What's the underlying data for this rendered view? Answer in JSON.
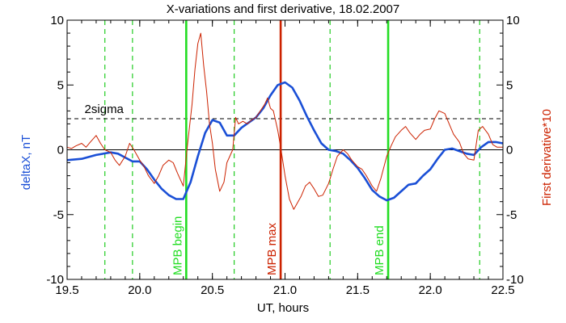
{
  "chart_data": {
    "type": "line",
    "title": "X-variations and first derivative, 18.02.2007",
    "xlabel": "UT, hours",
    "ylabel_left": "deltaX, nT",
    "ylabel_right": "First derivative*10",
    "xlim": [
      19.5,
      22.5
    ],
    "ylim": [
      -10,
      10
    ],
    "x_ticks": [
      "19.5",
      "20.0",
      "20.5",
      "21.0",
      "21.5",
      "22.0",
      "22.5"
    ],
    "y_ticks_left": [
      "-10",
      "-5",
      "0",
      "5",
      "10"
    ],
    "y_ticks_right": [
      "-10",
      "-5",
      "0",
      "5",
      "10"
    ],
    "colors": {
      "deltaX": "#1a4fd6",
      "derivative": "#cc2200",
      "mpb_bound": "#22dd22",
      "mpb_max": "#cc2200",
      "dashed_green": "#22cc22",
      "axis": "#000000",
      "ylabel_left": "#1a4fd6",
      "ylabel_right": "#cc2200"
    },
    "threshold": {
      "label": "2sigma",
      "value": 2.4
    },
    "zero_line": 0,
    "vlines_dashed": [
      19.76,
      19.95,
      20.65,
      21.31,
      22.34
    ],
    "vlines_solid": [
      {
        "x": 20.32,
        "label": "MPB begin",
        "color": "#22dd22"
      },
      {
        "x": 20.97,
        "label": "MPB max",
        "color": "#cc2200"
      },
      {
        "x": 21.71,
        "label": "MPB end",
        "color": "#22dd22"
      }
    ],
    "series": [
      {
        "name": "deltaX, nT",
        "color": "#1a4fd6",
        "x": [
          19.5,
          19.6,
          19.7,
          19.8,
          19.85,
          19.9,
          19.95,
          20.0,
          20.05,
          20.1,
          20.15,
          20.2,
          20.25,
          20.3,
          20.35,
          20.4,
          20.45,
          20.5,
          20.55,
          20.6,
          20.65,
          20.7,
          20.75,
          20.8,
          20.85,
          20.9,
          20.95,
          21.0,
          21.05,
          21.1,
          21.15,
          21.2,
          21.25,
          21.3,
          21.35,
          21.4,
          21.45,
          21.5,
          21.55,
          21.6,
          21.65,
          21.7,
          21.75,
          21.8,
          21.85,
          21.9,
          21.95,
          22.0,
          22.05,
          22.1,
          22.15,
          22.2,
          22.25,
          22.3,
          22.35,
          22.4,
          22.45,
          22.5
        ],
        "y": [
          -0.8,
          -0.7,
          -0.4,
          -0.2,
          -0.3,
          -0.6,
          -0.9,
          -0.9,
          -1.5,
          -2.3,
          -3.0,
          -3.5,
          -3.8,
          -3.8,
          -2.5,
          -0.5,
          1.3,
          2.3,
          2.1,
          1.1,
          1.1,
          1.7,
          2.1,
          2.5,
          3.2,
          4.2,
          5.0,
          5.2,
          4.8,
          3.8,
          2.6,
          1.5,
          0.5,
          0.0,
          -0.1,
          -0.3,
          -0.8,
          -1.4,
          -2.2,
          -3.1,
          -3.6,
          -3.9,
          -3.7,
          -3.2,
          -2.7,
          -2.6,
          -2.0,
          -1.5,
          -0.7,
          0.0,
          0.1,
          -0.1,
          -0.3,
          -0.4,
          0.2,
          0.6,
          0.6,
          0.5
        ]
      },
      {
        "name": "First derivative*10",
        "color": "#cc2200",
        "x": [
          19.5,
          19.53,
          19.56,
          19.6,
          19.63,
          19.66,
          19.7,
          19.73,
          19.76,
          19.8,
          19.83,
          19.86,
          19.9,
          19.93,
          19.96,
          20.0,
          20.03,
          20.06,
          20.1,
          20.13,
          20.16,
          20.2,
          20.23,
          20.26,
          20.3,
          20.33,
          20.36,
          20.38,
          20.4,
          20.42,
          20.44,
          20.46,
          20.48,
          20.5,
          20.52,
          20.55,
          20.58,
          20.6,
          20.62,
          20.64,
          20.66,
          20.68,
          20.71,
          20.74,
          20.77,
          20.8,
          20.83,
          20.86,
          20.88,
          20.9,
          20.92,
          20.95,
          20.97,
          21.0,
          21.03,
          21.06,
          21.08,
          21.11,
          21.14,
          21.17,
          21.2,
          21.23,
          21.26,
          21.3,
          21.33,
          21.36,
          21.4,
          21.43,
          21.46,
          21.5,
          21.53,
          21.56,
          21.6,
          21.63,
          21.66,
          21.7,
          21.73,
          21.76,
          21.8,
          21.83,
          21.86,
          21.9,
          21.93,
          21.96,
          22.0,
          22.03,
          22.06,
          22.1,
          22.13,
          22.16,
          22.2,
          22.23,
          22.26,
          22.3,
          22.33,
          22.36,
          22.4,
          22.43,
          22.46,
          22.5
        ],
        "y": [
          0.2,
          0.1,
          0.3,
          0.5,
          0.2,
          0.6,
          1.1,
          0.5,
          0.0,
          -0.2,
          -0.8,
          -1.2,
          -0.5,
          0.5,
          0.0,
          -0.8,
          -1.3,
          -2.0,
          -2.6,
          -2.0,
          -1.2,
          -0.8,
          -1.0,
          -1.8,
          -2.8,
          0.5,
          3.5,
          6.2,
          8.2,
          9.0,
          6.5,
          4.5,
          2.0,
          0.5,
          -1.5,
          -3.2,
          -2.5,
          -1.0,
          -0.5,
          0.0,
          2.5,
          2.0,
          2.2,
          2.0,
          2.3,
          2.5,
          3.0,
          3.5,
          4.0,
          3.2,
          3.0,
          1.5,
          0.2,
          -2.0,
          -3.8,
          -4.6,
          -4.2,
          -3.6,
          -2.8,
          -2.5,
          -3.0,
          -3.6,
          -3.5,
          -2.6,
          -1.5,
          -0.5,
          0.0,
          -0.3,
          -0.8,
          -1.3,
          -1.5,
          -2.0,
          -2.8,
          -3.2,
          -2.2,
          -0.5,
          0.3,
          1.0,
          1.5,
          1.8,
          1.3,
          0.8,
          1.2,
          1.5,
          1.6,
          2.4,
          3.0,
          2.8,
          2.0,
          1.2,
          0.6,
          -0.3,
          -0.7,
          -0.8,
          1.5,
          1.8,
          1.2,
          0.4,
          0.2,
          0.2
        ]
      }
    ]
  }
}
